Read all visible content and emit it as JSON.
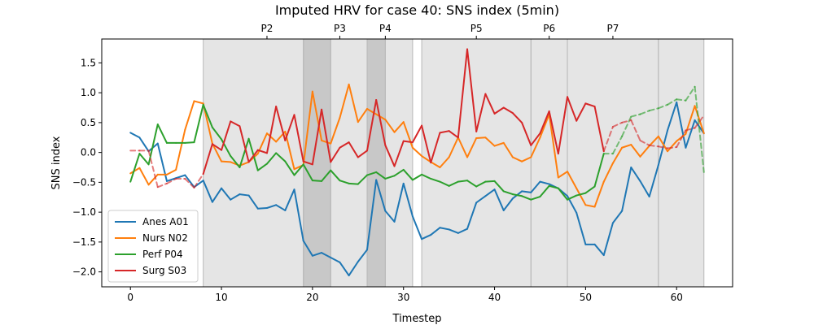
{
  "chart_data": {
    "type": "line",
    "title": "Imputed HRV for case 40: SNS index (5min)",
    "xlabel": "Timestep",
    "ylabel": "SNS index",
    "xlim": [
      -3.15,
      66.15
    ],
    "ylim": [
      -2.25,
      1.9
    ],
    "x_ticks": [
      0,
      10,
      20,
      30,
      40,
      50,
      60
    ],
    "y_ticks": [
      -2.0,
      -1.5,
      -1.0,
      -0.5,
      0.0,
      0.5,
      1.0,
      1.5
    ],
    "y_tick_labels": [
      "−2.0",
      "−1.5",
      "−1.0",
      "−0.5",
      "0.0",
      "0.5",
      "1.0",
      "1.5"
    ],
    "grid": false,
    "legend_position": "lower-left",
    "phase_labels": [
      {
        "label": "P2",
        "x": 15
      },
      {
        "label": "P3",
        "x": 23
      },
      {
        "label": "P4",
        "x": 28
      },
      {
        "label": "P5",
        "x": 38
      },
      {
        "label": "P6",
        "x": 46
      },
      {
        "label": "P7",
        "x": 53
      }
    ],
    "shaded_regions": [
      {
        "x0": 8,
        "x1": 19,
        "shade": "light"
      },
      {
        "x0": 19,
        "x1": 22,
        "shade": "dark"
      },
      {
        "x0": 22,
        "x1": 26,
        "shade": "light"
      },
      {
        "x0": 26,
        "x1": 28,
        "shade": "dark"
      },
      {
        "x0": 28,
        "x1": 31,
        "shade": "light"
      },
      {
        "x0": 32,
        "x1": 44,
        "shade": "light"
      },
      {
        "x0": 44,
        "x1": 48,
        "shade": "light"
      },
      {
        "x0": 48,
        "x1": 58,
        "shade": "light"
      },
      {
        "x0": 58,
        "x1": 63,
        "shade": "light"
      }
    ],
    "series": [
      {
        "name": "Anes A01",
        "color": "#1f77b4",
        "x": [
          0,
          1,
          2,
          3,
          4,
          5,
          6,
          7,
          8,
          9,
          10,
          11,
          12,
          13,
          14,
          15,
          16,
          17,
          18,
          19,
          20,
          21,
          22,
          23,
          24,
          25,
          26,
          27,
          28,
          29,
          30,
          31,
          32,
          33,
          34,
          35,
          36,
          37,
          38,
          39,
          40,
          41,
          42,
          43,
          44,
          45,
          46,
          47,
          48,
          49,
          50,
          51,
          52,
          53,
          54,
          55,
          56,
          57,
          58,
          59,
          60,
          61,
          62,
          63
        ],
        "values": [
          0.33,
          0.25,
          0.02,
          0.15,
          -0.48,
          -0.43,
          -0.38,
          -0.58,
          -0.47,
          -0.83,
          -0.6,
          -0.79,
          -0.7,
          -0.72,
          -0.94,
          -0.93,
          -0.88,
          -0.97,
          -0.62,
          -1.48,
          -1.73,
          -1.68,
          -1.76,
          -1.84,
          -2.06,
          -1.83,
          -1.63,
          -0.46,
          -0.98,
          -1.16,
          -0.52,
          -1.07,
          -1.45,
          -1.38,
          -1.26,
          -1.29,
          -1.35,
          -1.28,
          -0.84,
          -0.73,
          -0.62,
          -0.97,
          -0.77,
          -0.65,
          -0.67,
          -0.49,
          -0.53,
          -0.6,
          -0.73,
          -1.01,
          -1.54,
          -1.54,
          -1.72,
          -1.18,
          -0.98,
          -0.25,
          -0.48,
          -0.74,
          -0.21,
          0.37,
          0.84,
          0.08,
          0.54,
          0.32
        ],
        "dashed_segments": []
      },
      {
        "name": "Nurs N02",
        "color": "#ff7f0e",
        "x": [
          0,
          1,
          2,
          3,
          4,
          5,
          6,
          7,
          8,
          9,
          10,
          11,
          12,
          13,
          14,
          15,
          16,
          17,
          18,
          19,
          20,
          21,
          22,
          23,
          24,
          25,
          26,
          27,
          28,
          29,
          30,
          31,
          32,
          33,
          34,
          35,
          36,
          37,
          38,
          39,
          40,
          41,
          42,
          43,
          44,
          45,
          46,
          47,
          48,
          49,
          50,
          51,
          52,
          53,
          54,
          55,
          56,
          57,
          58,
          59,
          60,
          61,
          62,
          63
        ],
        "values": [
          -0.35,
          -0.26,
          -0.54,
          -0.37,
          -0.37,
          -0.29,
          0.38,
          0.86,
          0.82,
          0.15,
          -0.15,
          -0.16,
          -0.22,
          -0.16,
          -0.02,
          0.32,
          0.18,
          0.35,
          -0.28,
          -0.21,
          1.02,
          0.2,
          0.15,
          0.58,
          1.14,
          0.51,
          0.73,
          0.64,
          0.55,
          0.34,
          0.51,
          0.08,
          -0.06,
          -0.16,
          -0.25,
          -0.08,
          0.25,
          -0.08,
          0.24,
          0.25,
          0.11,
          0.16,
          -0.08,
          -0.15,
          -0.08,
          0.25,
          0.64,
          -0.42,
          -0.32,
          -0.6,
          -0.88,
          -0.91,
          -0.49,
          -0.18,
          0.08,
          0.13,
          -0.07,
          0.11,
          0.27,
          0.02,
          0.19,
          0.31,
          0.78,
          0.32
        ],
        "dashed_segments": []
      },
      {
        "name": "Perf P04",
        "color": "#2ca02c",
        "x": [
          0,
          1,
          2,
          3,
          4,
          5,
          6,
          7,
          8,
          9,
          10,
          11,
          12,
          13,
          14,
          15,
          16,
          17,
          18,
          19,
          20,
          21,
          22,
          23,
          24,
          25,
          26,
          27,
          28,
          29,
          30,
          31,
          32,
          33,
          34,
          35,
          36,
          37,
          38,
          39,
          40,
          41,
          42,
          43,
          44,
          45,
          46,
          47,
          48,
          49,
          50,
          51,
          52,
          53,
          54,
          55,
          56,
          57,
          58,
          59,
          60,
          61,
          62,
          63
        ],
        "values": [
          -0.49,
          -0.02,
          -0.2,
          0.47,
          0.16,
          0.16,
          0.16,
          0.17,
          0.8,
          0.42,
          0.22,
          -0.06,
          -0.25,
          0.23,
          -0.3,
          -0.19,
          -0.01,
          -0.15,
          -0.38,
          -0.2,
          -0.47,
          -0.48,
          -0.3,
          -0.47,
          -0.52,
          -0.53,
          -0.38,
          -0.33,
          -0.44,
          -0.39,
          -0.29,
          -0.46,
          -0.37,
          -0.44,
          -0.49,
          -0.56,
          -0.49,
          -0.47,
          -0.57,
          -0.49,
          -0.48,
          -0.65,
          -0.7,
          -0.73,
          -0.79,
          -0.74,
          -0.56,
          -0.6,
          -0.79,
          -0.72,
          -0.68,
          -0.57,
          -0.02,
          -0.02,
          0.27,
          0.6,
          0.64,
          0.7,
          0.74,
          0.8,
          0.89,
          0.87,
          1.1,
          -0.33
        ],
        "dashed_segments": [
          [
            52,
            63
          ]
        ]
      },
      {
        "name": "Surg S03",
        "color": "#d62728",
        "x": [
          0,
          1,
          2,
          3,
          4,
          5,
          6,
          7,
          8,
          9,
          10,
          11,
          12,
          13,
          14,
          15,
          16,
          17,
          18,
          19,
          20,
          21,
          22,
          23,
          24,
          25,
          26,
          27,
          28,
          29,
          30,
          31,
          32,
          33,
          34,
          35,
          36,
          37,
          38,
          39,
          40,
          41,
          42,
          43,
          44,
          45,
          46,
          47,
          48,
          49,
          50,
          51,
          52,
          53,
          54,
          55,
          56,
          57,
          58,
          59,
          60,
          61,
          62,
          63
        ],
        "values": [
          0.03,
          0.03,
          0.03,
          -0.58,
          -0.52,
          -0.44,
          -0.44,
          -0.59,
          -0.36,
          0.14,
          0.04,
          0.52,
          0.44,
          -0.16,
          0.04,
          -0.01,
          0.77,
          0.2,
          0.63,
          -0.15,
          -0.2,
          0.72,
          -0.16,
          0.08,
          0.17,
          -0.08,
          0.03,
          0.88,
          0.12,
          -0.23,
          0.19,
          0.17,
          0.45,
          -0.17,
          0.33,
          0.36,
          0.25,
          1.73,
          0.35,
          0.98,
          0.65,
          0.75,
          0.66,
          0.5,
          0.12,
          0.32,
          0.69,
          -0.02,
          0.93,
          0.53,
          0.82,
          0.77,
          0.02,
          0.43,
          0.5,
          0.54,
          0.2,
          0.12,
          0.1,
          0.07,
          0.09,
          0.37,
          0.41,
          0.62
        ],
        "dashed_segments": [
          [
            0,
            2
          ],
          [
            2,
            8
          ],
          [
            52,
            63
          ]
        ]
      }
    ]
  }
}
